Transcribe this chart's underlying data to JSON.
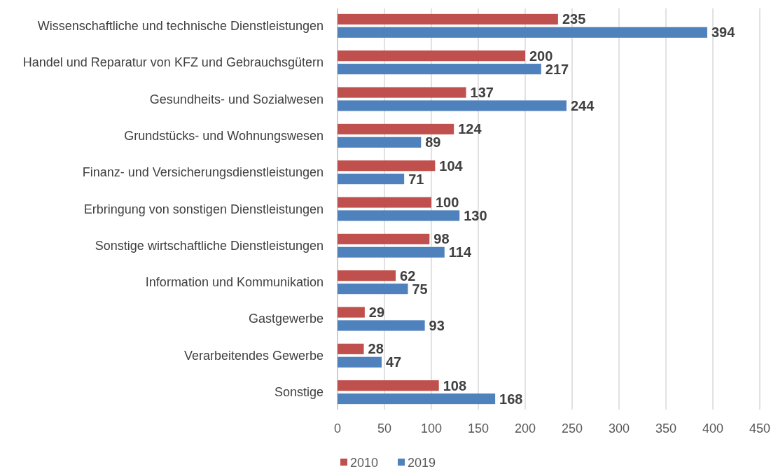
{
  "chart_data": {
    "type": "bar",
    "orientation": "horizontal",
    "categories": [
      "Wissenschaftliche und technische Dienstleistungen",
      "Handel und Reparatur von KFZ und Gebrauchsgütern",
      "Gesundheits- und Sozialwesen",
      "Grundstücks- und Wohnungswesen",
      "Finanz- und Versicherungsdienstleistungen",
      "Erbringung von sonstigen Dienstleistungen",
      "Sonstige wirtschaftliche Dienstleistungen",
      "Information und Kommunikation",
      "Gastgewerbe",
      "Verarbeitendes Gewerbe",
      "Sonstige"
    ],
    "series": [
      {
        "name": "2010",
        "color": "#c0504d",
        "values": [
          235,
          200,
          137,
          124,
          104,
          100,
          98,
          62,
          29,
          28,
          108
        ]
      },
      {
        "name": "2019",
        "color": "#4f81bd",
        "values": [
          394,
          217,
          244,
          89,
          71,
          130,
          114,
          75,
          93,
          47,
          168
        ]
      }
    ],
    "xlim": [
      0,
      450
    ],
    "xticks": [
      0,
      50,
      100,
      150,
      200,
      250,
      300,
      350,
      400,
      450
    ],
    "grid": "x",
    "legend": "bottom",
    "data_labels": true
  }
}
